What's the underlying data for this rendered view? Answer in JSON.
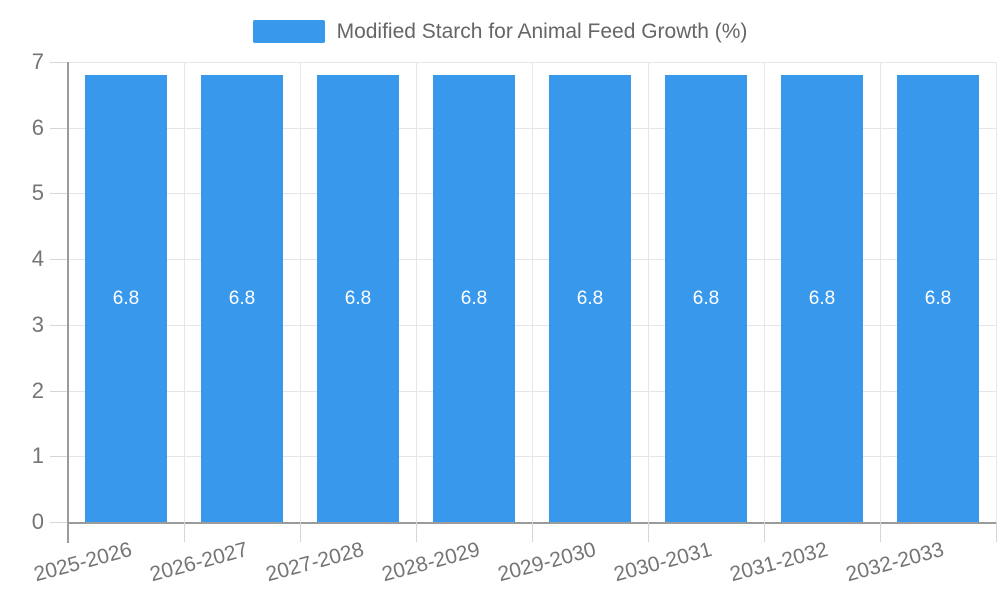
{
  "legend": {
    "label": "Modified Starch for Animal Feed Growth (%)"
  },
  "chart_data": {
    "type": "bar",
    "title": "Modified Starch for Animal Feed Growth (%)",
    "categories": [
      "2025-2026",
      "2026-2027",
      "2027-2028",
      "2028-2029",
      "2029-2030",
      "2030-2031",
      "2031-2032",
      "2032-2033"
    ],
    "series": [
      {
        "name": "Modified Starch for Animal Feed Growth (%)",
        "values": [
          6.8,
          6.8,
          6.8,
          6.8,
          6.8,
          6.8,
          6.8,
          6.8
        ],
        "value_labels": [
          "6.8",
          "6.8",
          "6.8",
          "6.8",
          "6.8",
          "6.8",
          "6.8",
          "6.8"
        ]
      }
    ],
    "xlabel": "",
    "ylabel": "",
    "ylim": [
      0,
      7
    ],
    "yticks": [
      0,
      1,
      2,
      3,
      4,
      5,
      6,
      7
    ],
    "grid": true,
    "legend_position": "top-center",
    "x_label_rotation_deg": -15,
    "colors": {
      "bar": "#3899EC",
      "bar_label": "#FFFFFF",
      "grid_line": "#E6E6E6",
      "axis_line": "#9B9B9B",
      "tick_line": "#D6D6D6",
      "axis_tick_text": "#757575",
      "legend_text": "#666666",
      "background": "#FFFFFF"
    }
  }
}
